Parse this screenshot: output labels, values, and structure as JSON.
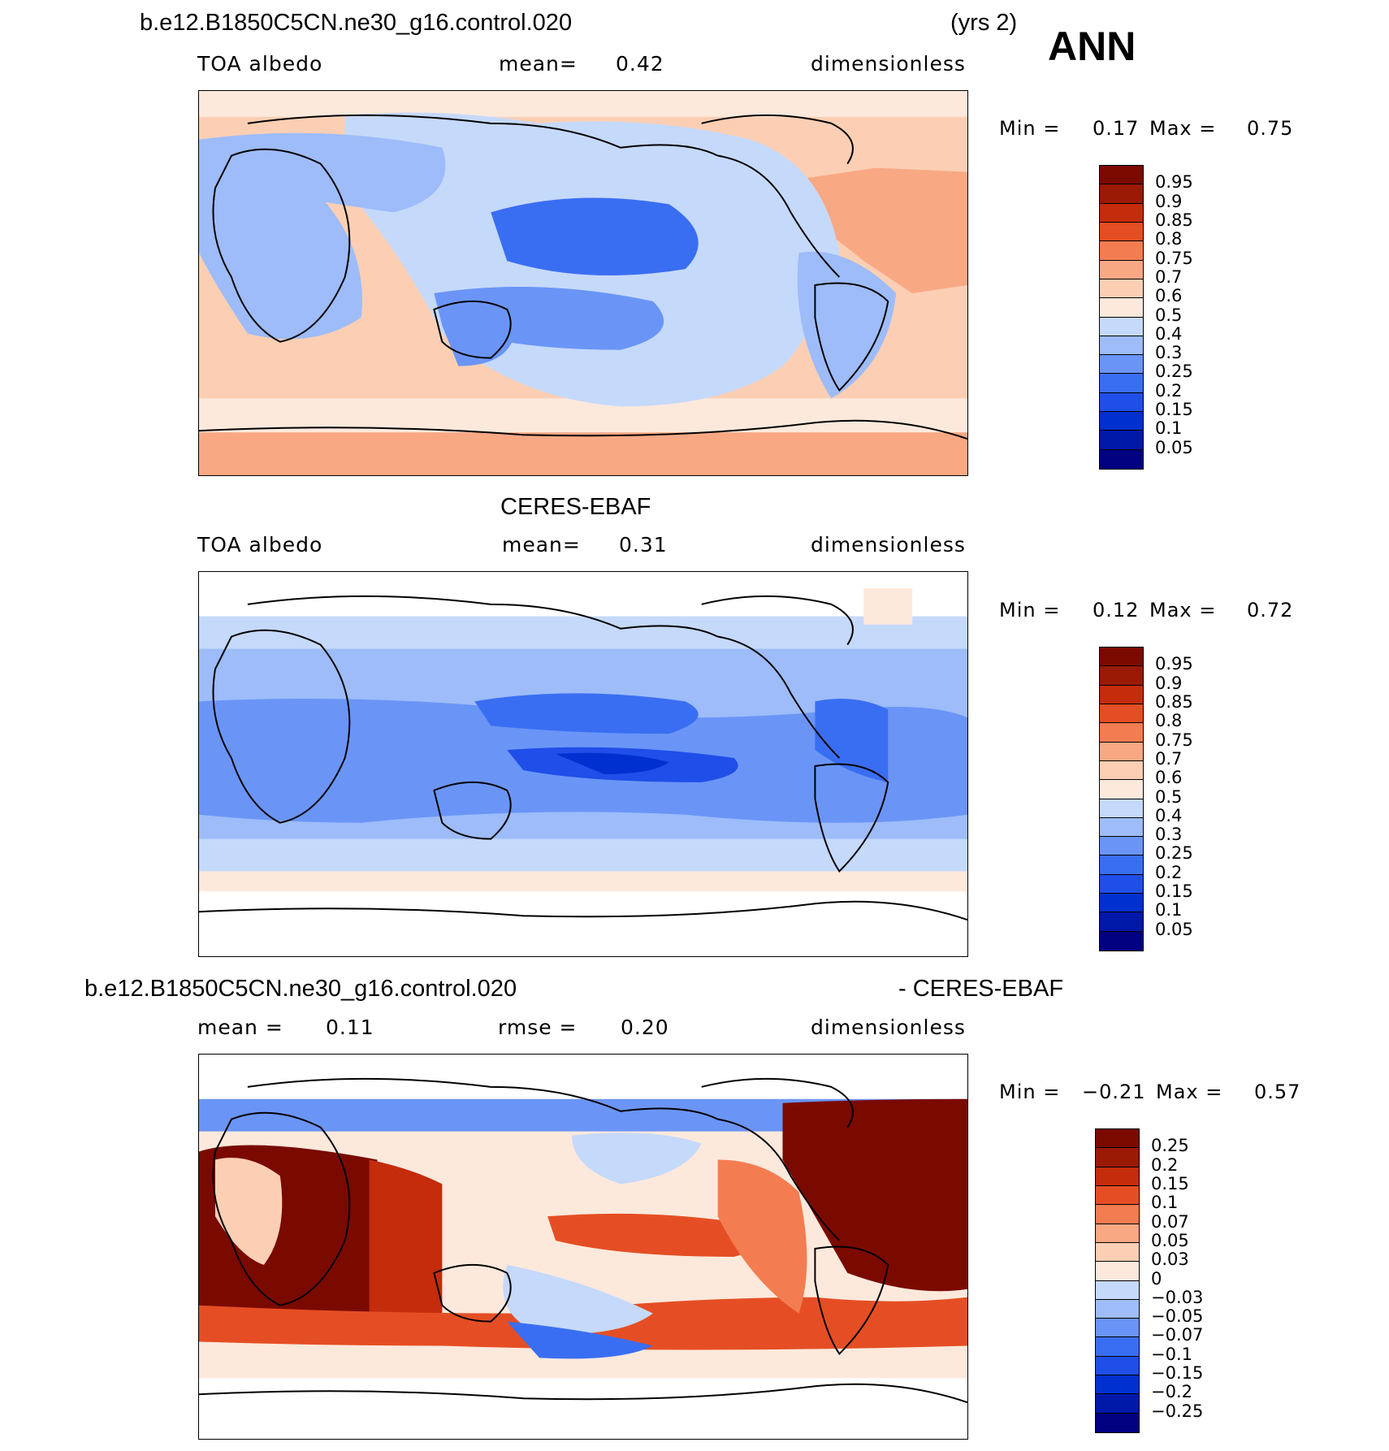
{
  "page": {
    "season": "ANN"
  },
  "colors": {
    "abs_scale": [
      "#000080",
      "#0018a8",
      "#0030d0",
      "#1f4fe8",
      "#3a6ef2",
      "#6a95f7",
      "#9dbcf9",
      "#c5d9fb",
      "#e3eefc",
      "#fde9dc",
      "#fccfb4",
      "#f9a884",
      "#f47c51",
      "#e54e24",
      "#c42c0b",
      "#9a1a05",
      "#7a0a00"
    ],
    "diff_scale": [
      "#000080",
      "#0018a8",
      "#0030d0",
      "#1f4fe8",
      "#3a6ef2",
      "#6a95f7",
      "#9dbcf9",
      "#c5d9fb",
      "#e3eefc",
      "#fde9dc",
      "#fccfb4",
      "#f9a884",
      "#f47c51",
      "#e54e24",
      "#c42c0b",
      "#9a1a05",
      "#7a0a00"
    ]
  },
  "chart_data": [
    {
      "type": "heatmap",
      "title": "b.e12.B1850C5CN.ne30_g16.control.020",
      "years": "(yrs 2)",
      "variable": "TOA albedo",
      "mean_label": "mean=",
      "mean": "0.42",
      "units": "dimensionless",
      "min_label": "Min =",
      "min": "0.17",
      "max_label": "Max =",
      "max": "0.75",
      "levels": [
        "0.95",
        "0.9",
        "0.85",
        "0.8",
        "0.75",
        "0.7",
        "0.6",
        "0.5",
        "0.4",
        "0.3",
        "0.25",
        "0.2",
        "0.15",
        "0.1",
        "0.05"
      ]
    },
    {
      "type": "heatmap",
      "title": "CERES-EBAF",
      "variable": "TOA albedo",
      "mean_label": "mean=",
      "mean": "0.31",
      "units": "dimensionless",
      "min_label": "Min =",
      "min": "0.12",
      "max_label": "Max =",
      "max": "0.72",
      "levels": [
        "0.95",
        "0.9",
        "0.85",
        "0.8",
        "0.75",
        "0.7",
        "0.6",
        "0.5",
        "0.4",
        "0.3",
        "0.25",
        "0.2",
        "0.15",
        "0.1",
        "0.05"
      ]
    },
    {
      "type": "heatmap",
      "title_left": "b.e12.B1850C5CN.ne30_g16.control.020",
      "title_right": "- CERES-EBAF",
      "mean_label": "mean =",
      "mean": "0.11",
      "rmse_label": "rmse =",
      "rmse": "0.20",
      "units": "dimensionless",
      "min_label": "Min =",
      "min": "−0.21",
      "max_label": "Max =",
      "max": "0.57",
      "levels": [
        "0.25",
        "0.2",
        "0.15",
        "0.1",
        "0.07",
        "0.05",
        "0.03",
        "0",
        "−0.03",
        "−0.05",
        "−0.07",
        "−0.1",
        "−0.15",
        "−0.2",
        "−0.25"
      ]
    }
  ]
}
